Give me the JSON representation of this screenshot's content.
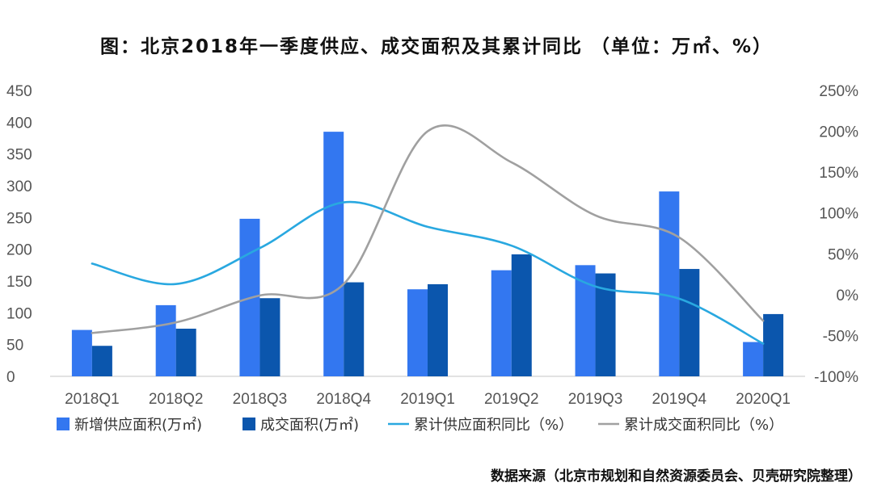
{
  "chart_data": {
    "type": "bar",
    "title": "图：北京2018年一季度供应、成交面积及其累计同比 （单位：万㎡、%）",
    "categories": [
      "2018Q1",
      "2018Q2",
      "2018Q3",
      "2018Q4",
      "2019Q1",
      "2019Q2",
      "2019Q3",
      "2019Q4",
      "2020Q1"
    ],
    "y_left": {
      "min": 0,
      "max": 450,
      "step": 50,
      "ticks": [
        "0",
        "50",
        "100",
        "150",
        "200",
        "250",
        "300",
        "350",
        "400",
        "450"
      ]
    },
    "y_right": {
      "min": -100,
      "max": 250,
      "step": 50,
      "ticks": [
        "-100%",
        "-50%",
        "0%",
        "50%",
        "100%",
        "150%",
        "200%",
        "250%"
      ]
    },
    "series": [
      {
        "name": "新增供应面积(万㎡)",
        "kind": "bar",
        "axis": "left",
        "color": "#3377f0",
        "values": [
          73,
          112,
          248,
          385,
          137,
          167,
          175,
          291,
          54
        ]
      },
      {
        "name": "成交面积(万㎡)",
        "kind": "bar",
        "axis": "left",
        "color": "#0b56ad",
        "values": [
          48,
          75,
          123,
          148,
          145,
          192,
          162,
          169,
          98
        ]
      },
      {
        "name": "累计供应面积同比（%）",
        "kind": "line",
        "axis": "right",
        "color": "#29a8e0",
        "values": [
          38,
          13,
          57,
          113,
          83,
          60,
          10,
          -5,
          -60
        ]
      },
      {
        "name": "累计成交面积同比（%）",
        "kind": "line",
        "axis": "right",
        "color": "#a0a0a0",
        "values": [
          -47,
          -34,
          -1,
          13,
          200,
          162,
          97,
          70,
          -32
        ]
      }
    ],
    "legend_position": "bottom"
  },
  "source": "数据来源（北京市规划和自然资源委员会、贝壳研究院整理）"
}
